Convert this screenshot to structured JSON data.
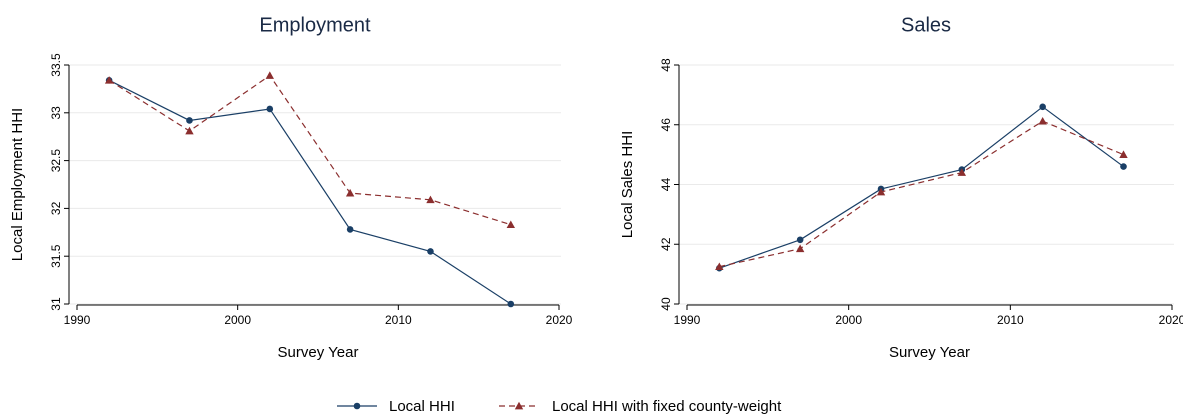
{
  "chart_data": [
    {
      "type": "line",
      "title": "Employment",
      "xlabel": "Survey Year",
      "ylabel": "Local Employment HHI",
      "xlim": [
        1990,
        2020
      ],
      "ylim": [
        31,
        33.5
      ],
      "xticks": [
        1990,
        2000,
        2010,
        2020
      ],
      "yticks": [
        31,
        31.5,
        32,
        32.5,
        33,
        33.5
      ],
      "ytick_labels": [
        "31",
        "31.5",
        "32",
        "32.5",
        "33",
        "33.5"
      ],
      "grid": true,
      "x": [
        1992,
        1997,
        2002,
        2007,
        2012,
        2017
      ],
      "series": [
        {
          "name": "Local HHI",
          "values": [
            33.34,
            32.92,
            33.04,
            31.78,
            31.55,
            31.0
          ]
        },
        {
          "name": "Local HHI with fixed county-weight",
          "values": [
            33.34,
            32.81,
            33.39,
            32.16,
            32.09,
            31.83
          ]
        }
      ]
    },
    {
      "type": "line",
      "title": "Sales",
      "xlabel": "Survey Year",
      "ylabel": "Local Sales HHI",
      "xlim": [
        1990,
        2020
      ],
      "ylim": [
        40,
        48
      ],
      "xticks": [
        1990,
        2000,
        2010,
        2020
      ],
      "yticks": [
        40,
        42,
        44,
        46,
        48
      ],
      "ytick_labels": [
        "40",
        "42",
        "44",
        "46",
        "48"
      ],
      "grid": true,
      "x": [
        1992,
        1997,
        2002,
        2007,
        2012,
        2017
      ],
      "series": [
        {
          "name": "Local HHI",
          "values": [
            41.2,
            42.15,
            43.85,
            44.5,
            46.6,
            44.6
          ]
        },
        {
          "name": "Local HHI with fixed county-weight",
          "values": [
            41.25,
            41.85,
            43.75,
            44.4,
            46.12,
            45.0
          ]
        }
      ]
    }
  ],
  "legend": {
    "placement": "bottom-center",
    "items": [
      {
        "label": "Local HHI",
        "color": "#1a3f66",
        "marker": "circle",
        "dash": "solid"
      },
      {
        "label": "Local HHI with fixed county-weight",
        "color": "#8b2e2e",
        "marker": "triangle",
        "dash": "dashed"
      }
    ]
  },
  "colors": {
    "series_0": "#1a3f66",
    "series_1": "#8b2e2e",
    "title": "#1a2a45",
    "grid": "#eaeaea"
  }
}
